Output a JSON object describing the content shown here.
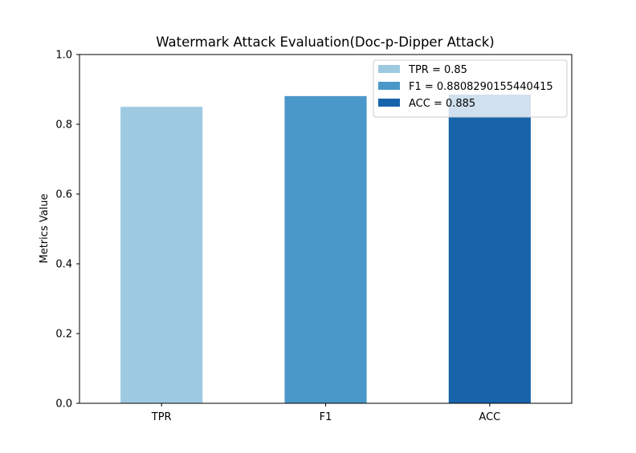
{
  "chart_data": {
    "type": "bar",
    "title": "Watermark Attack Evaluation(Doc-p-Dipper Attack)",
    "xlabel": "",
    "ylabel": "Metrics Value",
    "categories": [
      "TPR",
      "F1",
      "ACC"
    ],
    "values": [
      0.85,
      0.8808290155440415,
      0.885
    ],
    "colors": [
      "#9ecae1",
      "#4a98c9",
      "#1764ab"
    ],
    "ylim": [
      0,
      1.0
    ],
    "yticks": [
      "0.0",
      "0.2",
      "0.4",
      "0.6",
      "0.8",
      "1.0"
    ],
    "grid": false,
    "legend": {
      "placement": "upper right",
      "entries": [
        "TPR = 0.85",
        "F1 = 0.8808290155440415",
        "ACC = 0.885"
      ]
    }
  }
}
